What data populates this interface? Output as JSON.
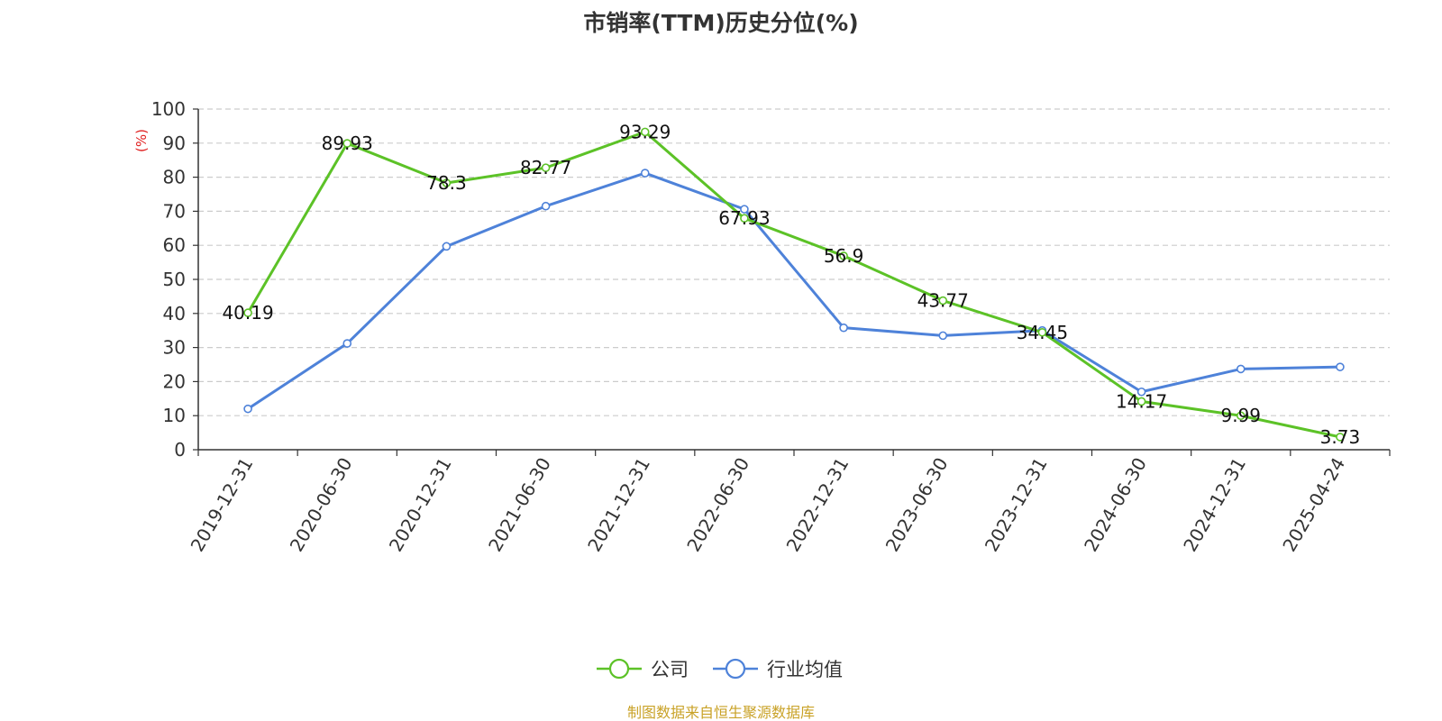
{
  "chart_data": {
    "type": "line",
    "title": "市销率(TTM)历史分位(%)",
    "ylabel": "(%)",
    "xlabel": "",
    "ylim": [
      0,
      100
    ],
    "yticks": [
      0,
      10,
      20,
      30,
      40,
      50,
      60,
      70,
      80,
      90,
      100
    ],
    "grid": true,
    "legend_position": "bottom-center",
    "categories": [
      "2019-12-31",
      "2020-06-30",
      "2020-12-31",
      "2021-06-30",
      "2021-12-31",
      "2022-06-30",
      "2022-12-31",
      "2023-06-30",
      "2023-12-31",
      "2024-06-30",
      "2024-12-31",
      "2025-04-24"
    ],
    "series": [
      {
        "name": "公司",
        "color": "#5cc227",
        "show_labels": true,
        "values": [
          40.19,
          89.93,
          78.3,
          82.77,
          93.29,
          67.93,
          56.9,
          43.77,
          34.45,
          14.17,
          9.99,
          3.73
        ],
        "labels": [
          "40.19",
          "89.93",
          "78.3",
          "82.77",
          "93.29",
          "67.93",
          "56.9",
          "43.77",
          "34.45",
          "14.17",
          "9.99",
          "3.73"
        ]
      },
      {
        "name": "行业均值",
        "color": "#4e82d9",
        "show_labels": false,
        "values": [
          12,
          31.2,
          59.7,
          71.5,
          81.2,
          70.6,
          35.8,
          33.5,
          35,
          17,
          23.7,
          24.3
        ]
      }
    ],
    "source": "制图数据来自恒生聚源数据库",
    "source_color": "#c9a227",
    "ylabel_color": "#e02020"
  }
}
